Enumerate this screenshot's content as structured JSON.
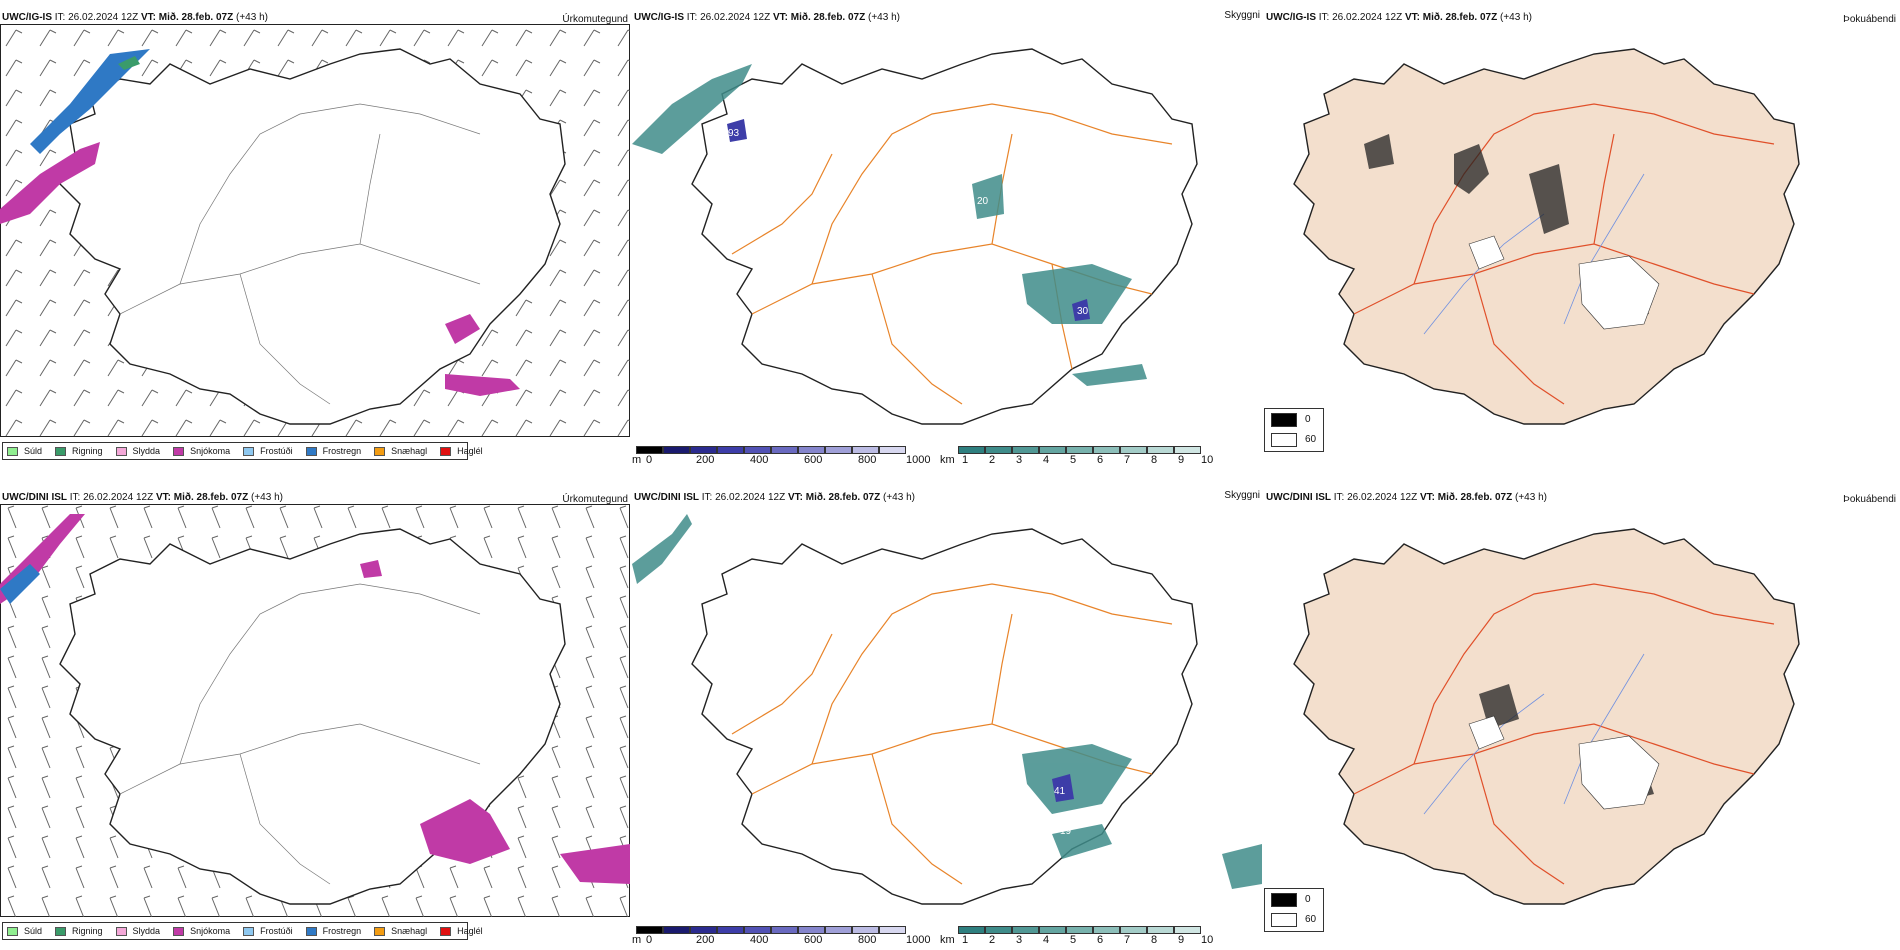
{
  "rows": [
    {
      "model": "UWC/IG-IS",
      "it_label": "IT:",
      "it_value": "26.02.2024 12Z",
      "vt_label": "VT:",
      "vt_value": "Mið. 28.feb. 07Z",
      "lead": "(+43 h)"
    },
    {
      "model": "UWC/DINI ISL",
      "it_label": "IT:",
      "it_value": "26.02.2024 12Z",
      "vt_label": "VT:",
      "vt_value": "Mið. 28.feb. 07Z",
      "lead": "(+43 h)"
    }
  ],
  "panel_titles": {
    "precip_type": "Úrkomutegund",
    "visibility": "Skyggni",
    "fog": "Þokuábendi"
  },
  "precip_legend": [
    {
      "label": "Súld",
      "color": "#90ee90"
    },
    {
      "label": "Rigning",
      "color": "#3a9b6a"
    },
    {
      "label": "Slydda",
      "color": "#f4a8d8"
    },
    {
      "label": "Snjókoma",
      "color": "#c03aa6"
    },
    {
      "label": "Frostúði",
      "color": "#8ec8f0"
    },
    {
      "label": "Frostregn",
      "color": "#2f79c5"
    },
    {
      "label": "Snæhagl",
      "color": "#f39c12"
    },
    {
      "label": "Haglél",
      "color": "#e01010"
    }
  ],
  "visibility_m_scale": {
    "unit": "m",
    "ticks": [
      "0",
      "200",
      "400",
      "600",
      "800",
      "1000"
    ],
    "colors": [
      "#000000",
      "#1a1a6e",
      "#2b2b8f",
      "#3d3da8",
      "#5252b5",
      "#6a6ac0",
      "#8585cc",
      "#a0a0d8",
      "#bcbce4",
      "#d8d8f0"
    ]
  },
  "visibility_km_scale": {
    "unit": "km",
    "ticks": [
      "1",
      "2",
      "3",
      "4",
      "5",
      "6",
      "7",
      "8",
      "9",
      "10"
    ],
    "colors": [
      "#2e7f7f",
      "#3f8c8a",
      "#519895",
      "#64a5a1",
      "#78b2ad",
      "#8dbfba",
      "#a3ccc7",
      "#b9d9d5",
      "#d0e6e3",
      "#e7f3f1"
    ]
  },
  "fog_scale": {
    "top_label": "0",
    "bottom_label": "60",
    "top_color": "#000000",
    "bottom_color": "#ffffff"
  },
  "map_colors": {
    "land_fog": "#f3dfcd",
    "roads_vis": "#e8842a",
    "roads_fog": "#e0502a",
    "rivers": "#7090e0",
    "coast": "#222222"
  },
  "map_labels": {
    "row1": [
      "93",
      "20",
      "30"
    ],
    "row2": [
      "41",
      "19"
    ]
  }
}
